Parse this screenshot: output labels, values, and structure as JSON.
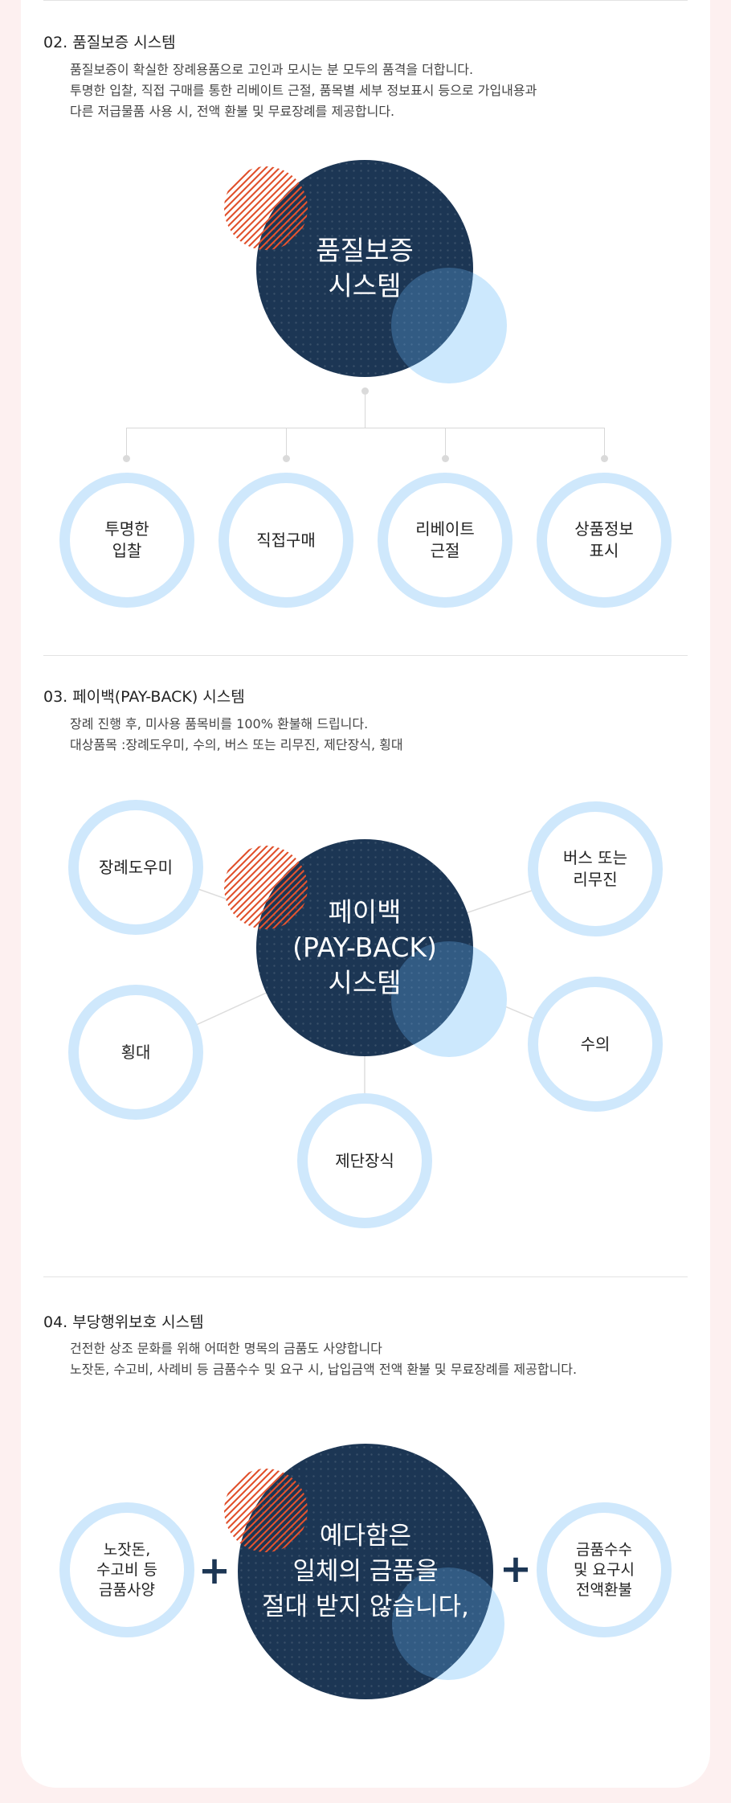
{
  "section2": {
    "title": "02. 품질보증 시스템",
    "desc_lines": [
      "품질보증이 확실한 장례용품으로 고인과 모시는 분 모두의 품격을 더합니다.",
      "투명한 입찰, 직접 구매를 통한 리베이트 근절, 품목별 세부 정보표시 등으로 가입내용과",
      "다른 저급물품 사용 시, 전액 환불 및 무료장례를 제공합니다."
    ],
    "center_lines": [
      "품질보증",
      "시스템"
    ],
    "items": [
      {
        "lines": [
          "투명한",
          "입찰"
        ]
      },
      {
        "lines": [
          "직접구매"
        ]
      },
      {
        "lines": [
          "리베이트",
          "근절"
        ]
      },
      {
        "lines": [
          "상품정보",
          "표시"
        ]
      }
    ]
  },
  "section3": {
    "title": "03. 페이백(PAY-BACK) 시스템",
    "desc_lines": [
      "장례 진행 후, 미사용 품목비를 100% 환불해 드립니다.",
      "대상품목 :장례도우미, 수의, 버스 또는 리무진, 제단장식, 횡대"
    ],
    "center_lines": [
      "페이백",
      "(PAY-BACK)",
      "시스템"
    ],
    "items": {
      "helper": [
        "장례도우미"
      ],
      "bus": [
        "버스 또는",
        "리무진"
      ],
      "crossbar": [
        "횡대"
      ],
      "shroud": [
        "수의"
      ],
      "altar": [
        "제단장식"
      ]
    }
  },
  "section4": {
    "title": "04. 부당행위보호 시스템",
    "desc_lines": [
      "건전한 상조 문화를 위해 어떠한 명목의 금품도 사양합니다",
      "노잣돈, 수고비, 사례비 등 금품수수 및 요구 시, 납입금액 전액 환불 및 무료장례를 제공합니다."
    ],
    "center_lines": [
      "예다함은",
      "일체의 금품을",
      "절대 받지 않습니다,"
    ],
    "left_lines": [
      "노잣돈,",
      "수고비 등",
      "금품사양"
    ],
    "right_lines": [
      "금품수수",
      "및 요구시",
      "전액환불"
    ],
    "plus_symbol": "+"
  },
  "colors": {
    "navy": "#1c3654",
    "light_blue": "#cfe8fc",
    "stripe_red": "#e1532f",
    "page_background": "#fdf0f0"
  }
}
